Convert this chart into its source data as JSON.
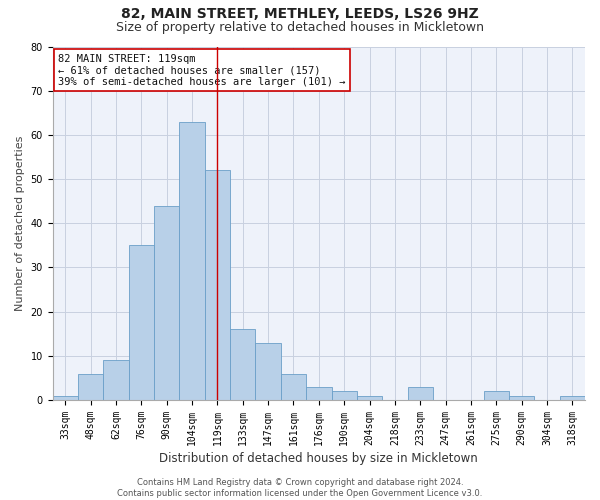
{
  "title": "82, MAIN STREET, METHLEY, LEEDS, LS26 9HZ",
  "subtitle": "Size of property relative to detached houses in Mickletown",
  "xlabel": "Distribution of detached houses by size in Mickletown",
  "ylabel": "Number of detached properties",
  "categories": [
    "33sqm",
    "48sqm",
    "62sqm",
    "76sqm",
    "90sqm",
    "104sqm",
    "119sqm",
    "133sqm",
    "147sqm",
    "161sqm",
    "176sqm",
    "190sqm",
    "204sqm",
    "218sqm",
    "233sqm",
    "247sqm",
    "261sqm",
    "275sqm",
    "290sqm",
    "304sqm",
    "318sqm"
  ],
  "values": [
    1,
    6,
    9,
    35,
    44,
    63,
    52,
    16,
    13,
    6,
    3,
    2,
    1,
    0,
    3,
    0,
    0,
    2,
    1,
    0,
    1
  ],
  "bar_color": "#b8d0e8",
  "bar_edge_color": "#6a9fc8",
  "highlight_index": 6,
  "highlight_line_color": "#cc0000",
  "annotation_text": "82 MAIN STREET: 119sqm\n← 61% of detached houses are smaller (157)\n39% of semi-detached houses are larger (101) →",
  "annotation_box_color": "#ffffff",
  "annotation_box_edge_color": "#cc0000",
  "ylim": [
    0,
    80
  ],
  "yticks": [
    0,
    10,
    20,
    30,
    40,
    50,
    60,
    70,
    80
  ],
  "grid_color": "#c8d0e0",
  "background_color": "#eef2fa",
  "footer_text": "Contains HM Land Registry data © Crown copyright and database right 2024.\nContains public sector information licensed under the Open Government Licence v3.0.",
  "title_fontsize": 10,
  "subtitle_fontsize": 9,
  "xlabel_fontsize": 8.5,
  "ylabel_fontsize": 8,
  "tick_fontsize": 7,
  "annotation_fontsize": 7.5,
  "footer_fontsize": 6
}
